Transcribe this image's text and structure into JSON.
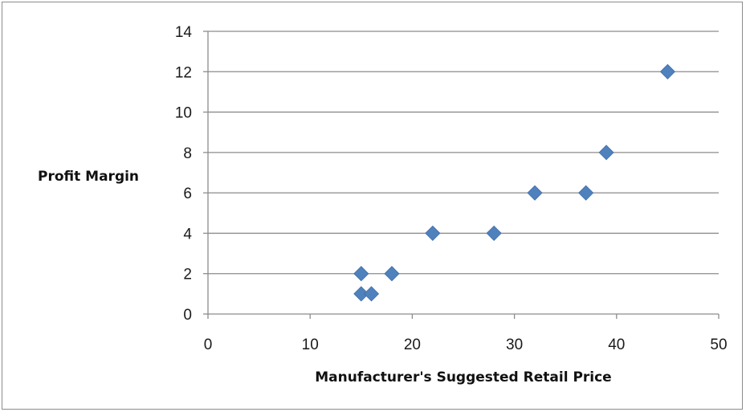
{
  "chart_data": {
    "type": "scatter",
    "title": "",
    "xlabel": "Manufacturer's Suggested Retail Price",
    "ylabel": "Profit Margin",
    "xlim": [
      0,
      50
    ],
    "ylim": [
      0,
      14
    ],
    "xticks": [
      "0",
      "10",
      "20",
      "30",
      "40",
      "50"
    ],
    "yticks": [
      "0",
      "2",
      "4",
      "6",
      "8",
      "10",
      "12",
      "14"
    ],
    "grid": "horizontal",
    "legend": "none",
    "marker": "diamond",
    "series": [
      {
        "x": [
          15,
          15,
          16,
          18,
          22,
          28,
          32,
          37,
          39,
          45
        ],
        "y": [
          2,
          1,
          1,
          2,
          4,
          4,
          6,
          6,
          8,
          12
        ],
        "color": "#4f81bd"
      }
    ]
  }
}
